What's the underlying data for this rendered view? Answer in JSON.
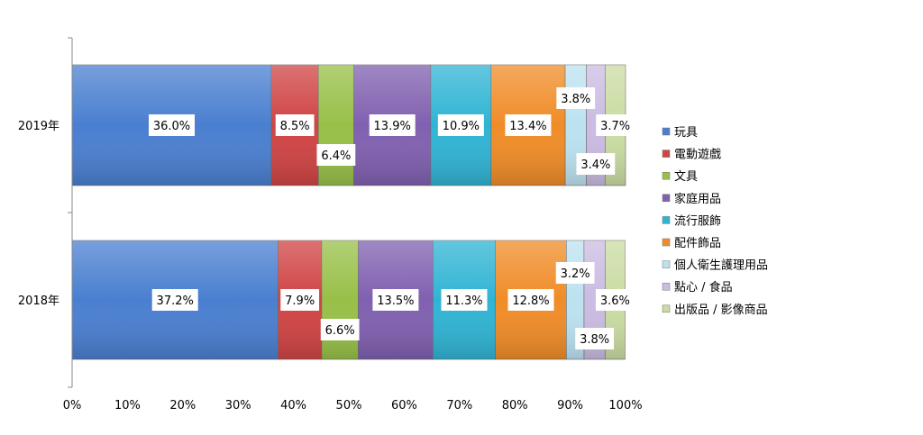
{
  "chart_data": {
    "type": "bar",
    "orientation": "horizontal",
    "stacked": "percent",
    "categories": [
      "2019年",
      "2018年"
    ],
    "series": [
      {
        "name": "玩具",
        "values": [
          36.0,
          37.2
        ],
        "color": "#4a7fd0"
      },
      {
        "name": "電動遊戲",
        "values": [
          8.5,
          7.9
        ],
        "color": "#d04444"
      },
      {
        "name": "文具",
        "values": [
          6.4,
          6.6
        ],
        "color": "#98c048"
      },
      {
        "name": "家庭用品",
        "values": [
          13.9,
          13.5
        ],
        "color": "#8060b0"
      },
      {
        "name": "流行服飾",
        "values": [
          10.9,
          11.3
        ],
        "color": "#30b4d4"
      },
      {
        "name": "配件飾品",
        "values": [
          13.4,
          12.8
        ],
        "color": "#f08c28"
      },
      {
        "name": "個人衛生護理用品",
        "values": [
          3.8,
          3.2
        ],
        "color": "#bce2f0"
      },
      {
        "name": "點心 / 食品",
        "values": [
          3.4,
          3.8
        ],
        "color": "#cabce2"
      },
      {
        "name": "出版品 / 影像商品",
        "values": [
          3.7,
          3.6
        ],
        "color": "#cadca2"
      }
    ],
    "data_labels": [
      [
        "36.0%",
        "8.5%",
        "6.4%",
        "13.9%",
        "10.9%",
        "13.4%",
        "3.8%",
        "3.4%",
        "3.7%"
      ],
      [
        "37.2%",
        "7.9%",
        "6.6%",
        "13.5%",
        "11.3%",
        "12.8%",
        "3.2%",
        "3.8%",
        "3.6%"
      ]
    ],
    "xlim": [
      0,
      100
    ],
    "x_ticks": [
      "0%",
      "10%",
      "20%",
      "30%",
      "40%",
      "50%",
      "60%",
      "70%",
      "80%",
      "90%",
      "100%"
    ],
    "grid": false,
    "legend": "right"
  }
}
